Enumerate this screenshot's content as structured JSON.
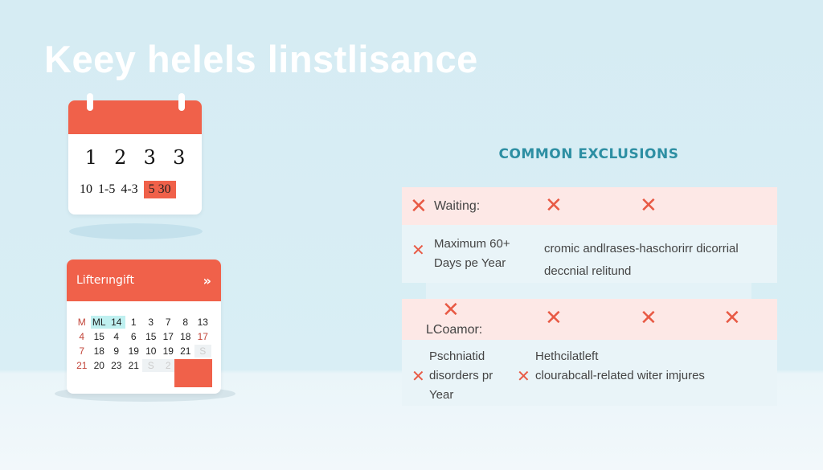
{
  "title": "Keey helels linstlisance",
  "calendar_top": {
    "big_numbers": [
      "1",
      "2",
      "3",
      "3"
    ],
    "small_numbers": [
      "10",
      "1-5",
      "4-3"
    ],
    "highlight": "5  30"
  },
  "calendar_bottom": {
    "header": "Lifterıngift",
    "nav_icon": "»",
    "cells": [
      [
        "M",
        "r"
      ],
      [
        "ML",
        "t"
      ],
      [
        "14",
        "t"
      ],
      [
        "1",
        ""
      ],
      [
        "3",
        ""
      ],
      [
        "7",
        ""
      ],
      [
        "8",
        ""
      ],
      [
        "13",
        ""
      ],
      [
        "4",
        "r"
      ],
      [
        "15",
        ""
      ],
      [
        "4",
        ""
      ],
      [
        "6",
        ""
      ],
      [
        "15",
        ""
      ],
      [
        "17",
        ""
      ],
      [
        "18",
        ""
      ],
      [
        "17",
        "r"
      ],
      [
        "7",
        "r"
      ],
      [
        "18",
        ""
      ],
      [
        "9",
        ""
      ],
      [
        "19",
        ""
      ],
      [
        "10",
        ""
      ],
      [
        "19",
        ""
      ],
      [
        "21",
        ""
      ],
      [
        "S",
        "g"
      ],
      [
        "21",
        "r"
      ],
      [
        "20",
        ""
      ],
      [
        "23",
        ""
      ],
      [
        "21",
        ""
      ],
      [
        "S",
        "g"
      ],
      [
        "2",
        "g"
      ],
      [
        "",
        ""
      ],
      [
        "",
        ""
      ]
    ]
  },
  "exclusions": {
    "heading": "COMMON EXCLUSIONS",
    "row1_label": "Waiting:",
    "row2_left": [
      "Maximum 60+",
      "Days pe Year"
    ],
    "row2_right": [
      "cromic andlrases-haschorirr dicorrial",
      "deccnial relitund"
    ],
    "row3_label": "LCoamor:",
    "row4_left": [
      "Pschniatid",
      "disorders pr",
      "Year"
    ],
    "row4_right_top": "Hethcilatleft",
    "row4_right": "clourabcall-related witer imjures"
  },
  "colors": {
    "accent": "#f0614a",
    "heading": "#2d8fa3"
  }
}
